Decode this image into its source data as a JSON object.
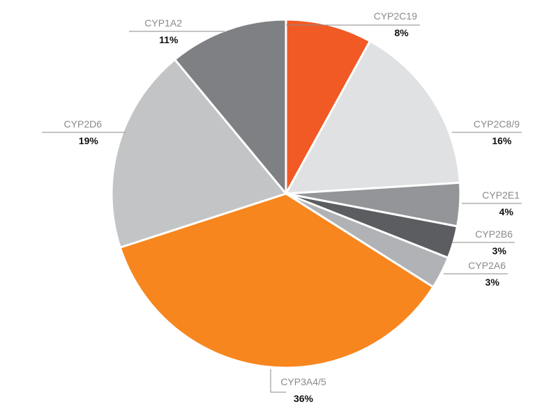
{
  "chart_data": {
    "type": "pie",
    "title": "",
    "slices": [
      {
        "name": "CYP2C19",
        "value": 8,
        "label": "8%",
        "color": "#f15a24"
      },
      {
        "name": "CYP2C8/9",
        "value": 16,
        "label": "16%",
        "color": "#e0e1e3"
      },
      {
        "name": "CYP2E1",
        "value": 4,
        "label": "4%",
        "color": "#939598"
      },
      {
        "name": "CYP2B6",
        "value": 3,
        "label": "3%",
        "color": "#5c5d60"
      },
      {
        "name": "CYP2A6",
        "value": 3,
        "label": "3%",
        "color": "#b0b2b5"
      },
      {
        "name": "CYP3A4/5",
        "value": 36,
        "label": "36%",
        "color": "#f7861e"
      },
      {
        "name": "CYP2D6",
        "value": 19,
        "label": "19%",
        "color": "#c3c4c6"
      },
      {
        "name": "CYP1A2",
        "value": 11,
        "label": "11%",
        "color": "#7f8083"
      }
    ]
  }
}
